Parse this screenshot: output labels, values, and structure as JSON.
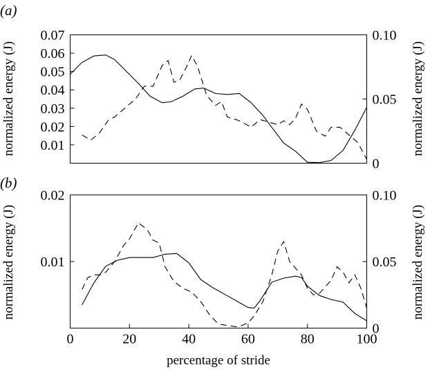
{
  "chart_data": [
    {
      "type": "line",
      "panel_label": "(a)",
      "title": "",
      "xlabel": "",
      "ylabel_left": "normalized energy (J)",
      "ylabel_right": "normalized energy (J)",
      "xlim": [
        0,
        100
      ],
      "ylim_left": [
        0,
        0.07
      ],
      "ylim_right": [
        0,
        0.1
      ],
      "yticks_left": [
        0.01,
        0.02,
        0.03,
        0.04,
        0.05,
        0.06,
        0.07
      ],
      "yticks_left_labels": [
        "0.01",
        "0.02",
        "0.03",
        "0.04",
        "0.05",
        "0.06",
        "0.07"
      ],
      "yticks_right": [
        0,
        0.05,
        0.1
      ],
      "yticks_right_labels": [
        "0",
        "0.05",
        "0.10"
      ],
      "series": [
        {
          "style": "solid",
          "axis": "left",
          "x": [
            0,
            4,
            8,
            12,
            15,
            19,
            23,
            27,
            31,
            34,
            38,
            42,
            45,
            49,
            53,
            57,
            61,
            65,
            68,
            72,
            76,
            80,
            84,
            88,
            92,
            96,
            100
          ],
          "y": [
            0.0485,
            0.055,
            0.0585,
            0.059,
            0.0565,
            0.05,
            0.0435,
            0.0365,
            0.033,
            0.0335,
            0.0365,
            0.0405,
            0.041,
            0.038,
            0.0375,
            0.038,
            0.033,
            0.026,
            0.0195,
            0.011,
            0.0065,
            0.0005,
            0.0003,
            0.0015,
            0.007,
            0.018,
            0.0305
          ]
        },
        {
          "style": "dashed",
          "axis": "right",
          "x": [
            4,
            7,
            10,
            13,
            15,
            17,
            19,
            22,
            25,
            28,
            31,
            33,
            35,
            37,
            39,
            41,
            43,
            46,
            49,
            51,
            53,
            56,
            58,
            61,
            64,
            67,
            70,
            72,
            74,
            76,
            78,
            80,
            83,
            86,
            88,
            91,
            94,
            97,
            100
          ],
          "y": [
            0.022,
            0.018,
            0.024,
            0.034,
            0.036,
            0.04,
            0.044,
            0.05,
            0.06,
            0.06,
            0.076,
            0.08,
            0.063,
            0.065,
            0.074,
            0.084,
            0.075,
            0.053,
            0.045,
            0.048,
            0.036,
            0.034,
            0.032,
            0.028,
            0.034,
            0.032,
            0.03,
            0.033,
            0.03,
            0.035,
            0.046,
            0.042,
            0.025,
            0.021,
            0.028,
            0.028,
            0.022,
            0.016,
            0.003
          ]
        }
      ]
    },
    {
      "type": "line",
      "panel_label": "(b)",
      "title": "",
      "xlabel": "percentage of stride",
      "ylabel_left": "normalized energy (J)",
      "ylabel_right": "normalized energy (J)",
      "xlim": [
        0,
        100
      ],
      "ylim_left": [
        0,
        0.02
      ],
      "ylim_right": [
        0,
        0.1
      ],
      "xticks": [
        0,
        20,
        40,
        60,
        80,
        100
      ],
      "xtick_labels": [
        "0",
        "20",
        "40",
        "60",
        "80",
        "100"
      ],
      "yticks_left": [
        0.01,
        0.02
      ],
      "yticks_left_labels": [
        "0.01",
        "0.02"
      ],
      "yticks_right": [
        0,
        0.05,
        0.1
      ],
      "yticks_right_labels": [
        "0",
        "0.05",
        "0.10"
      ],
      "series": [
        {
          "style": "solid",
          "axis": "left",
          "x": [
            4,
            8,
            12,
            16,
            20,
            24,
            28,
            32,
            36,
            40,
            44,
            48,
            52,
            56,
            60,
            62,
            64,
            68,
            72,
            76,
            78,
            80,
            84,
            88,
            92,
            96,
            100
          ],
          "y": [
            0.0035,
            0.0068,
            0.0093,
            0.0102,
            0.0106,
            0.0106,
            0.0106,
            0.0111,
            0.0112,
            0.0098,
            0.0073,
            0.0061,
            0.0051,
            0.0041,
            0.0031,
            0.003,
            0.0041,
            0.0069,
            0.0075,
            0.0078,
            0.0076,
            0.0063,
            0.0049,
            0.0043,
            0.0039,
            0.0022,
            0.0011
          ]
        },
        {
          "style": "dashed",
          "axis": "right",
          "x": [
            4,
            6,
            8,
            10,
            12,
            15,
            18,
            20,
            23,
            26,
            28,
            30,
            32,
            35,
            38,
            41,
            44,
            47,
            50,
            53,
            56,
            58,
            60,
            62,
            65,
            68,
            70,
            72,
            74,
            76,
            78,
            80,
            82,
            84,
            86,
            88,
            90,
            92,
            94,
            96,
            98,
            100
          ],
          "y": [
            0.029,
            0.038,
            0.04,
            0.04,
            0.042,
            0.05,
            0.062,
            0.067,
            0.079,
            0.074,
            0.066,
            0.064,
            0.046,
            0.035,
            0.03,
            0.027,
            0.02,
            0.01,
            0.003,
            0.002,
            0.001,
            0.002,
            0.004,
            0.009,
            0.02,
            0.04,
            0.058,
            0.065,
            0.05,
            0.045,
            0.04,
            0.03,
            0.025,
            0.026,
            0.031,
            0.036,
            0.046,
            0.042,
            0.034,
            0.04,
            0.03,
            0.015
          ]
        }
      ]
    }
  ]
}
